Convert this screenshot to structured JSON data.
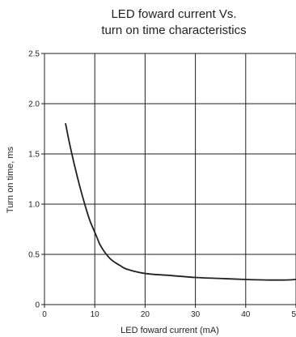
{
  "chart_data": {
    "type": "line",
    "title": [
      "LED foward current Vs.",
      "turn on time characteristics"
    ],
    "xlabel": "LED foward current (mA)",
    "ylabel": "Turn on time, ms",
    "xlim": [
      0,
      50
    ],
    "ylim": [
      0,
      2.5
    ],
    "x_ticks": [
      0,
      10,
      20,
      30,
      40,
      50
    ],
    "x_tick_labels": [
      "0",
      "10",
      "20",
      "30",
      "40",
      "50"
    ],
    "y_ticks": [
      0,
      0.5,
      1.0,
      1.5,
      2.0,
      2.5
    ],
    "y_tick_labels": [
      "0",
      "0.5",
      "1.0",
      "1.5",
      "2.0",
      "2.5"
    ],
    "grid": true,
    "series": [
      {
        "color": "#231f20",
        "x": [
          4.2,
          5,
          6,
          7,
          8,
          9,
          10,
          10.5,
          11,
          12,
          13,
          14,
          15,
          16,
          18,
          20,
          22,
          25,
          30,
          35,
          40,
          44,
          48,
          50
        ],
        "y": [
          1.8,
          1.6,
          1.38,
          1.18,
          1.0,
          0.84,
          0.72,
          0.66,
          0.6,
          0.52,
          0.46,
          0.42,
          0.39,
          0.36,
          0.33,
          0.31,
          0.3,
          0.29,
          0.27,
          0.26,
          0.25,
          0.245,
          0.245,
          0.25
        ]
      }
    ]
  }
}
